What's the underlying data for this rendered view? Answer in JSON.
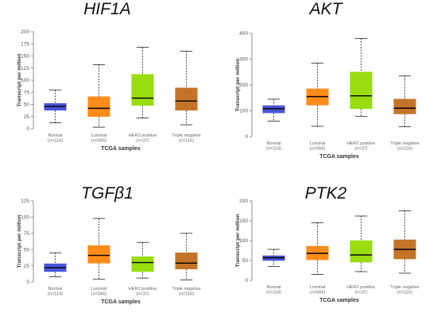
{
  "chart_data": [
    {
      "type": "box",
      "title": "HIF1A",
      "ylabel": "Transcript per million",
      "xlabel": "TCGA samples",
      "ylim": [
        0,
        200
      ],
      "yticks": [
        0,
        25,
        50,
        75,
        100,
        125,
        150,
        175,
        200
      ],
      "categories": [
        "Normal",
        "Luminal",
        "HER2 positive",
        "Triple negative"
      ],
      "counts": [
        "(n=114)",
        "(n=566)",
        "(n=37)",
        "(n=116)"
      ],
      "colors": [
        "#4a55d8",
        "#ff8c1a",
        "#99dd11",
        "#c47428"
      ],
      "boxes": [
        {
          "min": 12,
          "q1": 38,
          "median": 46,
          "q3": 52,
          "max": 80
        },
        {
          "min": 3,
          "q1": 25,
          "median": 42,
          "q3": 66,
          "max": 132
        },
        {
          "min": 22,
          "q1": 48,
          "median": 63,
          "q3": 112,
          "max": 168
        },
        {
          "min": 8,
          "q1": 38,
          "median": 57,
          "q3": 84,
          "max": 160
        }
      ]
    },
    {
      "type": "box",
      "title": "AKT",
      "ylabel": "Transcript per million",
      "xlabel": "TCGA samples",
      "ylim": [
        0,
        400
      ],
      "yticks": [
        0,
        100,
        200,
        300,
        400
      ],
      "categories": [
        "Normal",
        "Luminal",
        "HER2 positive",
        "Triple negative"
      ],
      "counts": [
        "(n=114)",
        "(n=566)",
        "(n=37)",
        "(n=116)"
      ],
      "colors": [
        "#4a55d8",
        "#ff8c1a",
        "#99dd11",
        "#c47428"
      ],
      "boxes": [
        {
          "min": 60,
          "q1": 92,
          "median": 108,
          "q3": 120,
          "max": 145
        },
        {
          "min": 40,
          "q1": 122,
          "median": 155,
          "q3": 185,
          "max": 285
        },
        {
          "min": 78,
          "q1": 108,
          "median": 158,
          "q3": 250,
          "max": 380
        },
        {
          "min": 38,
          "q1": 88,
          "median": 110,
          "q3": 145,
          "max": 235
        }
      ]
    },
    {
      "type": "box",
      "title": "TGFβ1",
      "ylabel": "Transcript per million",
      "xlabel": "TCGA samples",
      "ylim": [
        0,
        125
      ],
      "yticks": [
        0,
        25,
        50,
        75,
        100,
        125
      ],
      "categories": [
        "Normal",
        "Luminal",
        "HER2 positive",
        "Triple negative"
      ],
      "counts": [
        "(n=114)",
        "(n=566)",
        "(n=37)",
        "(n=116)"
      ],
      "colors": [
        "#4a55d8",
        "#ff8c1a",
        "#99dd11",
        "#c47428"
      ],
      "boxes": [
        {
          "min": 8,
          "q1": 16,
          "median": 22,
          "q3": 28,
          "max": 45
        },
        {
          "min": 4,
          "q1": 29,
          "median": 41,
          "q3": 56,
          "max": 98
        },
        {
          "min": 6,
          "q1": 16,
          "median": 30,
          "q3": 39,
          "max": 61
        },
        {
          "min": 3,
          "q1": 20,
          "median": 29,
          "q3": 45,
          "max": 75
        }
      ]
    },
    {
      "type": "box",
      "title": "PTK2",
      "ylabel": "Transcript per million",
      "xlabel": "TCGA samples",
      "ylim": [
        0,
        200
      ],
      "yticks": [
        0,
        50,
        100,
        150,
        200
      ],
      "categories": [
        "Normal",
        "Luminal",
        "HER2 positive",
        "Triple negative"
      ],
      "counts": [
        "(n=114)",
        "(n=566)",
        "(n=37)",
        "(n=116)"
      ],
      "colors": [
        "#4a55d8",
        "#ff8c1a",
        "#99dd11",
        "#c47428"
      ],
      "boxes": [
        {
          "min": 35,
          "q1": 50,
          "median": 57,
          "q3": 62,
          "max": 78
        },
        {
          "min": 15,
          "q1": 52,
          "median": 68,
          "q3": 86,
          "max": 145
        },
        {
          "min": 22,
          "q1": 46,
          "median": 64,
          "q3": 100,
          "max": 162
        },
        {
          "min": 18,
          "q1": 54,
          "median": 78,
          "q3": 102,
          "max": 175
        }
      ]
    }
  ]
}
